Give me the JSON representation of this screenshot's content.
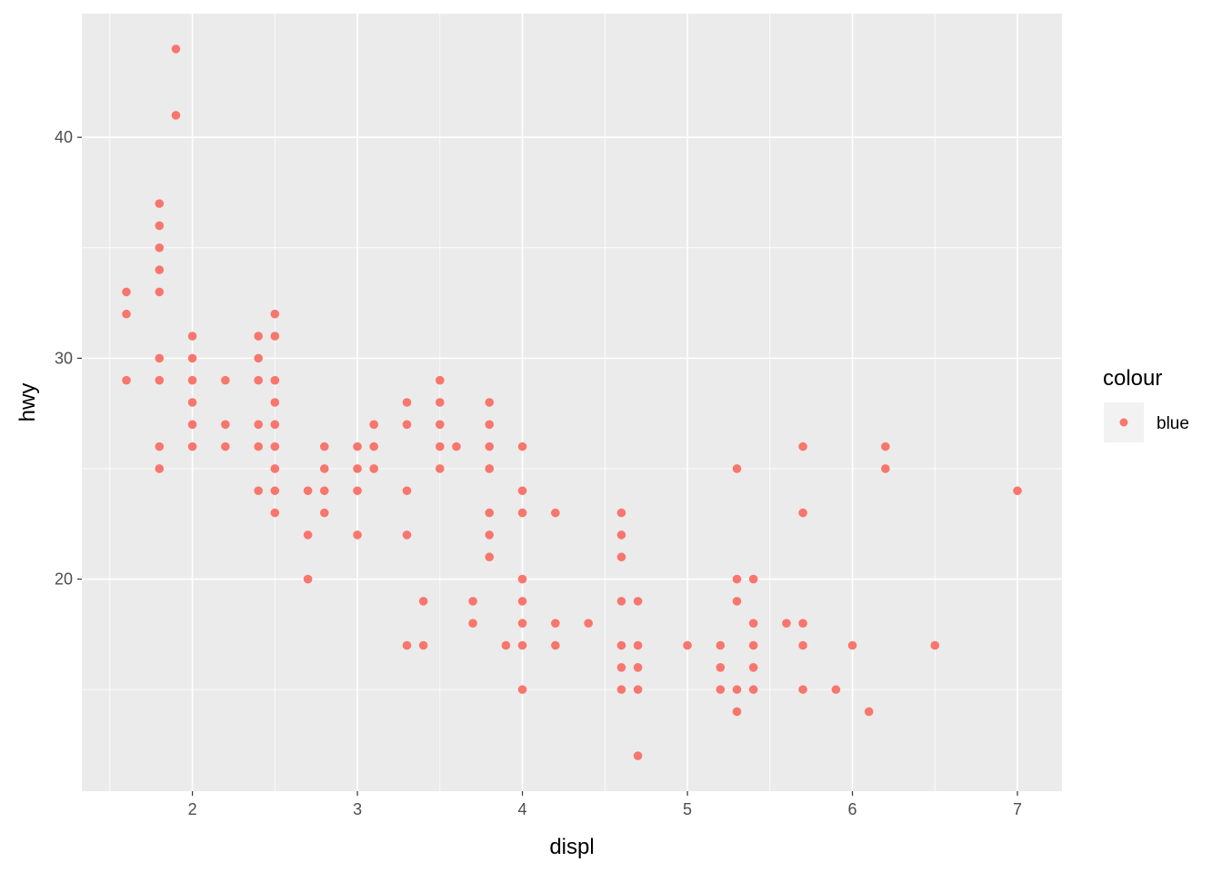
{
  "chart_data": {
    "type": "scatter",
    "title": "",
    "xlabel": "displ",
    "ylabel": "hwy",
    "xlim": [
      1.33,
      7.27
    ],
    "ylim": [
      10.4,
      45.6
    ],
    "x_ticks": [
      2,
      3,
      4,
      5,
      6,
      7
    ],
    "y_ticks": [
      20,
      30,
      40
    ],
    "grid": true,
    "panel_background": "#ebebeb",
    "grid_color": "#ffffff",
    "point_color": "#f8766d",
    "legend": {
      "title": "colour",
      "position": "right",
      "entries": [
        "blue"
      ]
    },
    "series": [
      {
        "name": "blue",
        "points": [
          [
            1.6,
            33
          ],
          [
            1.6,
            32
          ],
          [
            1.6,
            29
          ],
          [
            1.8,
            37
          ],
          [
            1.8,
            36
          ],
          [
            1.8,
            35
          ],
          [
            1.8,
            34
          ],
          [
            1.8,
            33
          ],
          [
            1.8,
            30
          ],
          [
            1.8,
            29
          ],
          [
            1.8,
            26
          ],
          [
            1.8,
            25
          ],
          [
            1.9,
            44
          ],
          [
            1.9,
            41
          ],
          [
            2.0,
            31
          ],
          [
            2.0,
            30
          ],
          [
            2.0,
            29
          ],
          [
            2.0,
            28
          ],
          [
            2.0,
            27
          ],
          [
            2.0,
            26
          ],
          [
            2.2,
            29
          ],
          [
            2.2,
            27
          ],
          [
            2.2,
            26
          ],
          [
            2.4,
            31
          ],
          [
            2.4,
            30
          ],
          [
            2.4,
            29
          ],
          [
            2.4,
            27
          ],
          [
            2.4,
            26
          ],
          [
            2.4,
            24
          ],
          [
            2.5,
            32
          ],
          [
            2.5,
            31
          ],
          [
            2.5,
            29
          ],
          [
            2.5,
            28
          ],
          [
            2.5,
            27
          ],
          [
            2.5,
            26
          ],
          [
            2.5,
            25
          ],
          [
            2.5,
            24
          ],
          [
            2.5,
            23
          ],
          [
            2.7,
            24
          ],
          [
            2.7,
            22
          ],
          [
            2.7,
            20
          ],
          [
            2.8,
            26
          ],
          [
            2.8,
            25
          ],
          [
            2.8,
            24
          ],
          [
            2.8,
            23
          ],
          [
            3.0,
            26
          ],
          [
            3.0,
            25
          ],
          [
            3.0,
            24
          ],
          [
            3.0,
            22
          ],
          [
            3.1,
            27
          ],
          [
            3.1,
            26
          ],
          [
            3.1,
            25
          ],
          [
            3.3,
            28
          ],
          [
            3.3,
            27
          ],
          [
            3.3,
            24
          ],
          [
            3.3,
            22
          ],
          [
            3.3,
            17
          ],
          [
            3.4,
            19
          ],
          [
            3.4,
            17
          ],
          [
            3.5,
            29
          ],
          [
            3.5,
            28
          ],
          [
            3.5,
            27
          ],
          [
            3.5,
            26
          ],
          [
            3.5,
            25
          ],
          [
            3.6,
            26
          ],
          [
            3.7,
            19
          ],
          [
            3.7,
            18
          ],
          [
            3.8,
            28
          ],
          [
            3.8,
            27
          ],
          [
            3.8,
            26
          ],
          [
            3.8,
            25
          ],
          [
            3.8,
            23
          ],
          [
            3.8,
            22
          ],
          [
            3.8,
            21
          ],
          [
            3.9,
            17
          ],
          [
            4.0,
            26
          ],
          [
            4.0,
            24
          ],
          [
            4.0,
            23
          ],
          [
            4.0,
            20
          ],
          [
            4.0,
            19
          ],
          [
            4.0,
            18
          ],
          [
            4.0,
            17
          ],
          [
            4.0,
            15
          ],
          [
            4.2,
            23
          ],
          [
            4.2,
            18
          ],
          [
            4.2,
            17
          ],
          [
            4.4,
            18
          ],
          [
            4.6,
            23
          ],
          [
            4.6,
            22
          ],
          [
            4.6,
            21
          ],
          [
            4.6,
            19
          ],
          [
            4.6,
            17
          ],
          [
            4.6,
            16
          ],
          [
            4.6,
            15
          ],
          [
            4.7,
            19
          ],
          [
            4.7,
            17
          ],
          [
            4.7,
            16
          ],
          [
            4.7,
            15
          ],
          [
            4.7,
            12
          ],
          [
            5.0,
            17
          ],
          [
            5.2,
            17
          ],
          [
            5.2,
            16
          ],
          [
            5.2,
            15
          ],
          [
            5.3,
            25
          ],
          [
            5.3,
            20
          ],
          [
            5.3,
            19
          ],
          [
            5.3,
            15
          ],
          [
            5.3,
            14
          ],
          [
            5.4,
            20
          ],
          [
            5.4,
            18
          ],
          [
            5.4,
            17
          ],
          [
            5.4,
            16
          ],
          [
            5.4,
            15
          ],
          [
            5.6,
            18
          ],
          [
            5.7,
            26
          ],
          [
            5.7,
            23
          ],
          [
            5.7,
            18
          ],
          [
            5.7,
            17
          ],
          [
            5.7,
            15
          ],
          [
            5.9,
            15
          ],
          [
            6.0,
            17
          ],
          [
            6.1,
            14
          ],
          [
            6.2,
            26
          ],
          [
            6.2,
            25
          ],
          [
            6.5,
            17
          ],
          [
            7.0,
            24
          ]
        ]
      }
    ]
  }
}
